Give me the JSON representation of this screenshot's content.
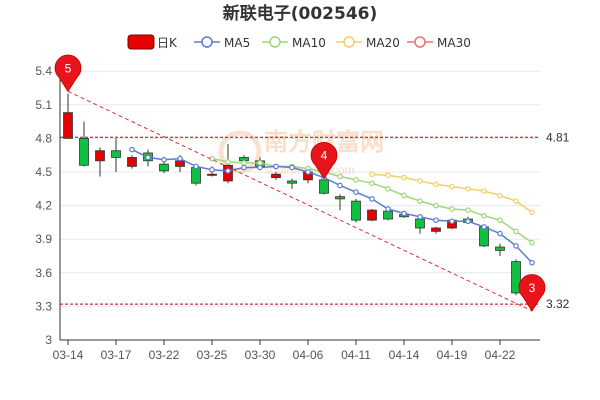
{
  "chart_data": {
    "type": "candlestick",
    "title": "新联电子(002546)",
    "watermark": {
      "text": "南方财富网",
      "url": "southmoney.com"
    },
    "legend": [
      "日K",
      "MA5",
      "MA10",
      "MA20",
      "MA30"
    ],
    "colors": {
      "up": "#e60000",
      "down": "#10c040",
      "ma5": "#5b7bd5",
      "ma10": "#9fd67a",
      "ma20": "#f5cd6b",
      "ma30": "#f07070",
      "ref": "#c00000",
      "trend": "#e03030"
    },
    "y_ticks": [
      "3",
      "3.3",
      "3.6",
      "3.9",
      "4.2",
      "4.5",
      "4.8",
      "5.1",
      "5.4"
    ],
    "y_range": [
      3,
      5.5
    ],
    "x_tick_labels": [
      "03-14",
      "03-17",
      "03-22",
      "03-25",
      "03-30",
      "04-06",
      "04-11",
      "04-14",
      "04-19",
      "04-22"
    ],
    "x_tick_index": [
      0,
      3,
      6,
      9,
      12,
      15,
      18,
      21,
      24,
      27
    ],
    "candles": [
      {
        "o": 4.8,
        "c": 5.03,
        "h": 5.2,
        "l": 4.8
      },
      {
        "o": 4.8,
        "c": 4.56,
        "h": 4.95,
        "l": 4.55
      },
      {
        "o": 4.6,
        "c": 4.69,
        "h": 4.72,
        "l": 4.46
      },
      {
        "o": 4.69,
        "c": 4.63,
        "h": 4.8,
        "l": 4.5
      },
      {
        "o": 4.55,
        "c": 4.63,
        "h": 4.65,
        "l": 4.53
      },
      {
        "o": 4.67,
        "c": 4.6,
        "h": 4.7,
        "l": 4.55
      },
      {
        "o": 4.57,
        "c": 4.51,
        "h": 4.6,
        "l": 4.49
      },
      {
        "o": 4.55,
        "c": 4.6,
        "h": 4.65,
        "l": 4.5
      },
      {
        "o": 4.54,
        "c": 4.4,
        "h": 4.56,
        "l": 4.38
      },
      {
        "o": 4.47,
        "c": 4.48,
        "h": 4.55,
        "l": 4.46
      },
      {
        "o": 4.42,
        "c": 4.56,
        "h": 4.75,
        "l": 4.4
      },
      {
        "o": 4.63,
        "c": 4.6,
        "h": 4.65,
        "l": 4.55
      },
      {
        "o": 4.6,
        "c": 4.55,
        "h": 4.63,
        "l": 4.53
      },
      {
        "o": 4.45,
        "c": 4.48,
        "h": 4.5,
        "l": 4.43
      },
      {
        "o": 4.42,
        "c": 4.4,
        "h": 4.44,
        "l": 4.35
      },
      {
        "o": 4.43,
        "c": 4.5,
        "h": 4.52,
        "l": 4.4
      },
      {
        "o": 4.43,
        "c": 4.31,
        "h": 4.58,
        "l": 4.3
      },
      {
        "o": 4.28,
        "c": 4.26,
        "h": 4.3,
        "l": 4.16
      },
      {
        "o": 4.24,
        "c": 4.07,
        "h": 4.26,
        "l": 4.05
      },
      {
        "o": 4.07,
        "c": 4.16,
        "h": 4.17,
        "l": 4.06
      },
      {
        "o": 4.15,
        "c": 4.08,
        "h": 4.17,
        "l": 4.07
      },
      {
        "o": 4.12,
        "c": 4.1,
        "h": 4.13,
        "l": 4.09
      },
      {
        "o": 4.08,
        "c": 4.0,
        "h": 4.09,
        "l": 3.95
      },
      {
        "o": 3.97,
        "c": 4.0,
        "h": 4.01,
        "l": 3.95
      },
      {
        "o": 4.0,
        "c": 4.07,
        "h": 4.08,
        "l": 3.99
      },
      {
        "o": 4.08,
        "c": 4.05,
        "h": 4.1,
        "l": 4.04
      },
      {
        "o": 4.01,
        "c": 3.84,
        "h": 4.02,
        "l": 3.83
      },
      {
        "o": 3.83,
        "c": 3.8,
        "h": 3.86,
        "l": 3.75
      },
      {
        "o": 3.7,
        "c": 3.42,
        "h": 3.72,
        "l": 3.4
      },
      {
        "o": 3.4,
        "c": 3.32,
        "h": 3.45,
        "l": 3.32
      }
    ],
    "ma5": [
      null,
      null,
      null,
      null,
      4.7,
      4.63,
      4.61,
      4.62,
      4.55,
      4.52,
      4.51,
      4.54,
      4.54,
      4.55,
      4.54,
      4.5,
      4.45,
      4.38,
      4.32,
      4.26,
      4.17,
      4.13,
      4.1,
      4.07,
      4.06,
      4.06,
      4.01,
      3.95,
      3.84,
      3.69
    ],
    "ma10": [
      null,
      null,
      null,
      null,
      null,
      null,
      null,
      null,
      null,
      4.62,
      4.59,
      4.58,
      4.58,
      4.55,
      4.55,
      4.53,
      4.5,
      4.46,
      4.43,
      4.4,
      4.35,
      4.29,
      4.24,
      4.2,
      4.17,
      4.16,
      4.11,
      4.07,
      3.97,
      3.87
    ],
    "ma20": [
      null,
      null,
      null,
      null,
      null,
      null,
      null,
      null,
      null,
      null,
      null,
      null,
      null,
      null,
      null,
      null,
      null,
      null,
      null,
      4.48,
      4.47,
      4.45,
      4.42,
      4.39,
      4.37,
      4.35,
      4.33,
      4.29,
      4.24,
      4.14
    ],
    "ma30": [],
    "ref_lines": [
      4.81,
      3.32
    ],
    "ref_labels": [
      "4.81",
      "3.32"
    ],
    "trendline": [
      [
        0,
        5.22
      ],
      [
        29,
        3.26
      ]
    ],
    "markers": [
      {
        "label": "5",
        "index": 0,
        "value": 5.22
      },
      {
        "label": "4",
        "index": 16,
        "value": 4.44
      },
      {
        "label": "3",
        "index": 29,
        "value": 3.26
      }
    ]
  }
}
